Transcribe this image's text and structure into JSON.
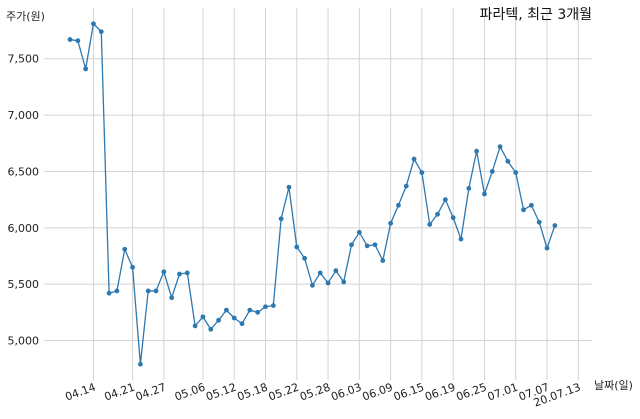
{
  "chart_data": {
    "type": "line",
    "title": "파라텍, 최근 3개월",
    "ylabel": "주가(원)",
    "xlabel": "날짜(일)",
    "ylim": [
      4650,
      7950
    ],
    "yticks": [
      5000,
      5500,
      6000,
      6500,
      7000,
      7500
    ],
    "ytick_labels": [
      "5,000",
      "5,500",
      "6,000",
      "6,500",
      "7,000",
      "7,500"
    ],
    "xtick_labels": [
      "04.14",
      "04.21",
      "04.27",
      "05.06",
      "05.12",
      "05.18",
      "05.22",
      "05.28",
      "06.03",
      "06.09",
      "06.15",
      "06.19",
      "06.25",
      "07.01",
      "07.07",
      "20.07.13"
    ],
    "xtick_index": [
      3,
      8,
      12,
      17,
      21,
      25,
      29,
      33,
      37,
      41,
      45,
      49,
      53,
      57,
      61,
      65
    ],
    "grid": true,
    "color": "#2e78b0",
    "series": [
      {
        "values": [
          7670,
          7660,
          7410,
          7810,
          7740,
          5420,
          5440,
          5810,
          5650,
          4790,
          5440,
          5440,
          5610,
          5380,
          5590,
          5600,
          5130,
          5210,
          5100,
          5180,
          5270,
          5200,
          5150,
          5270,
          5250,
          5300,
          5310,
          6080,
          6360,
          5830,
          5730,
          5490,
          5600,
          5510,
          5620,
          5520,
          5850,
          5960,
          5840,
          5850,
          5710,
          6040,
          6200,
          6370,
          6610,
          6490,
          6030,
          6120,
          6250,
          6090,
          5900,
          6350,
          6680,
          6300,
          6500,
          6720,
          6590,
          6490,
          6160,
          6200,
          6050,
          5820,
          6020
        ]
      }
    ]
  }
}
